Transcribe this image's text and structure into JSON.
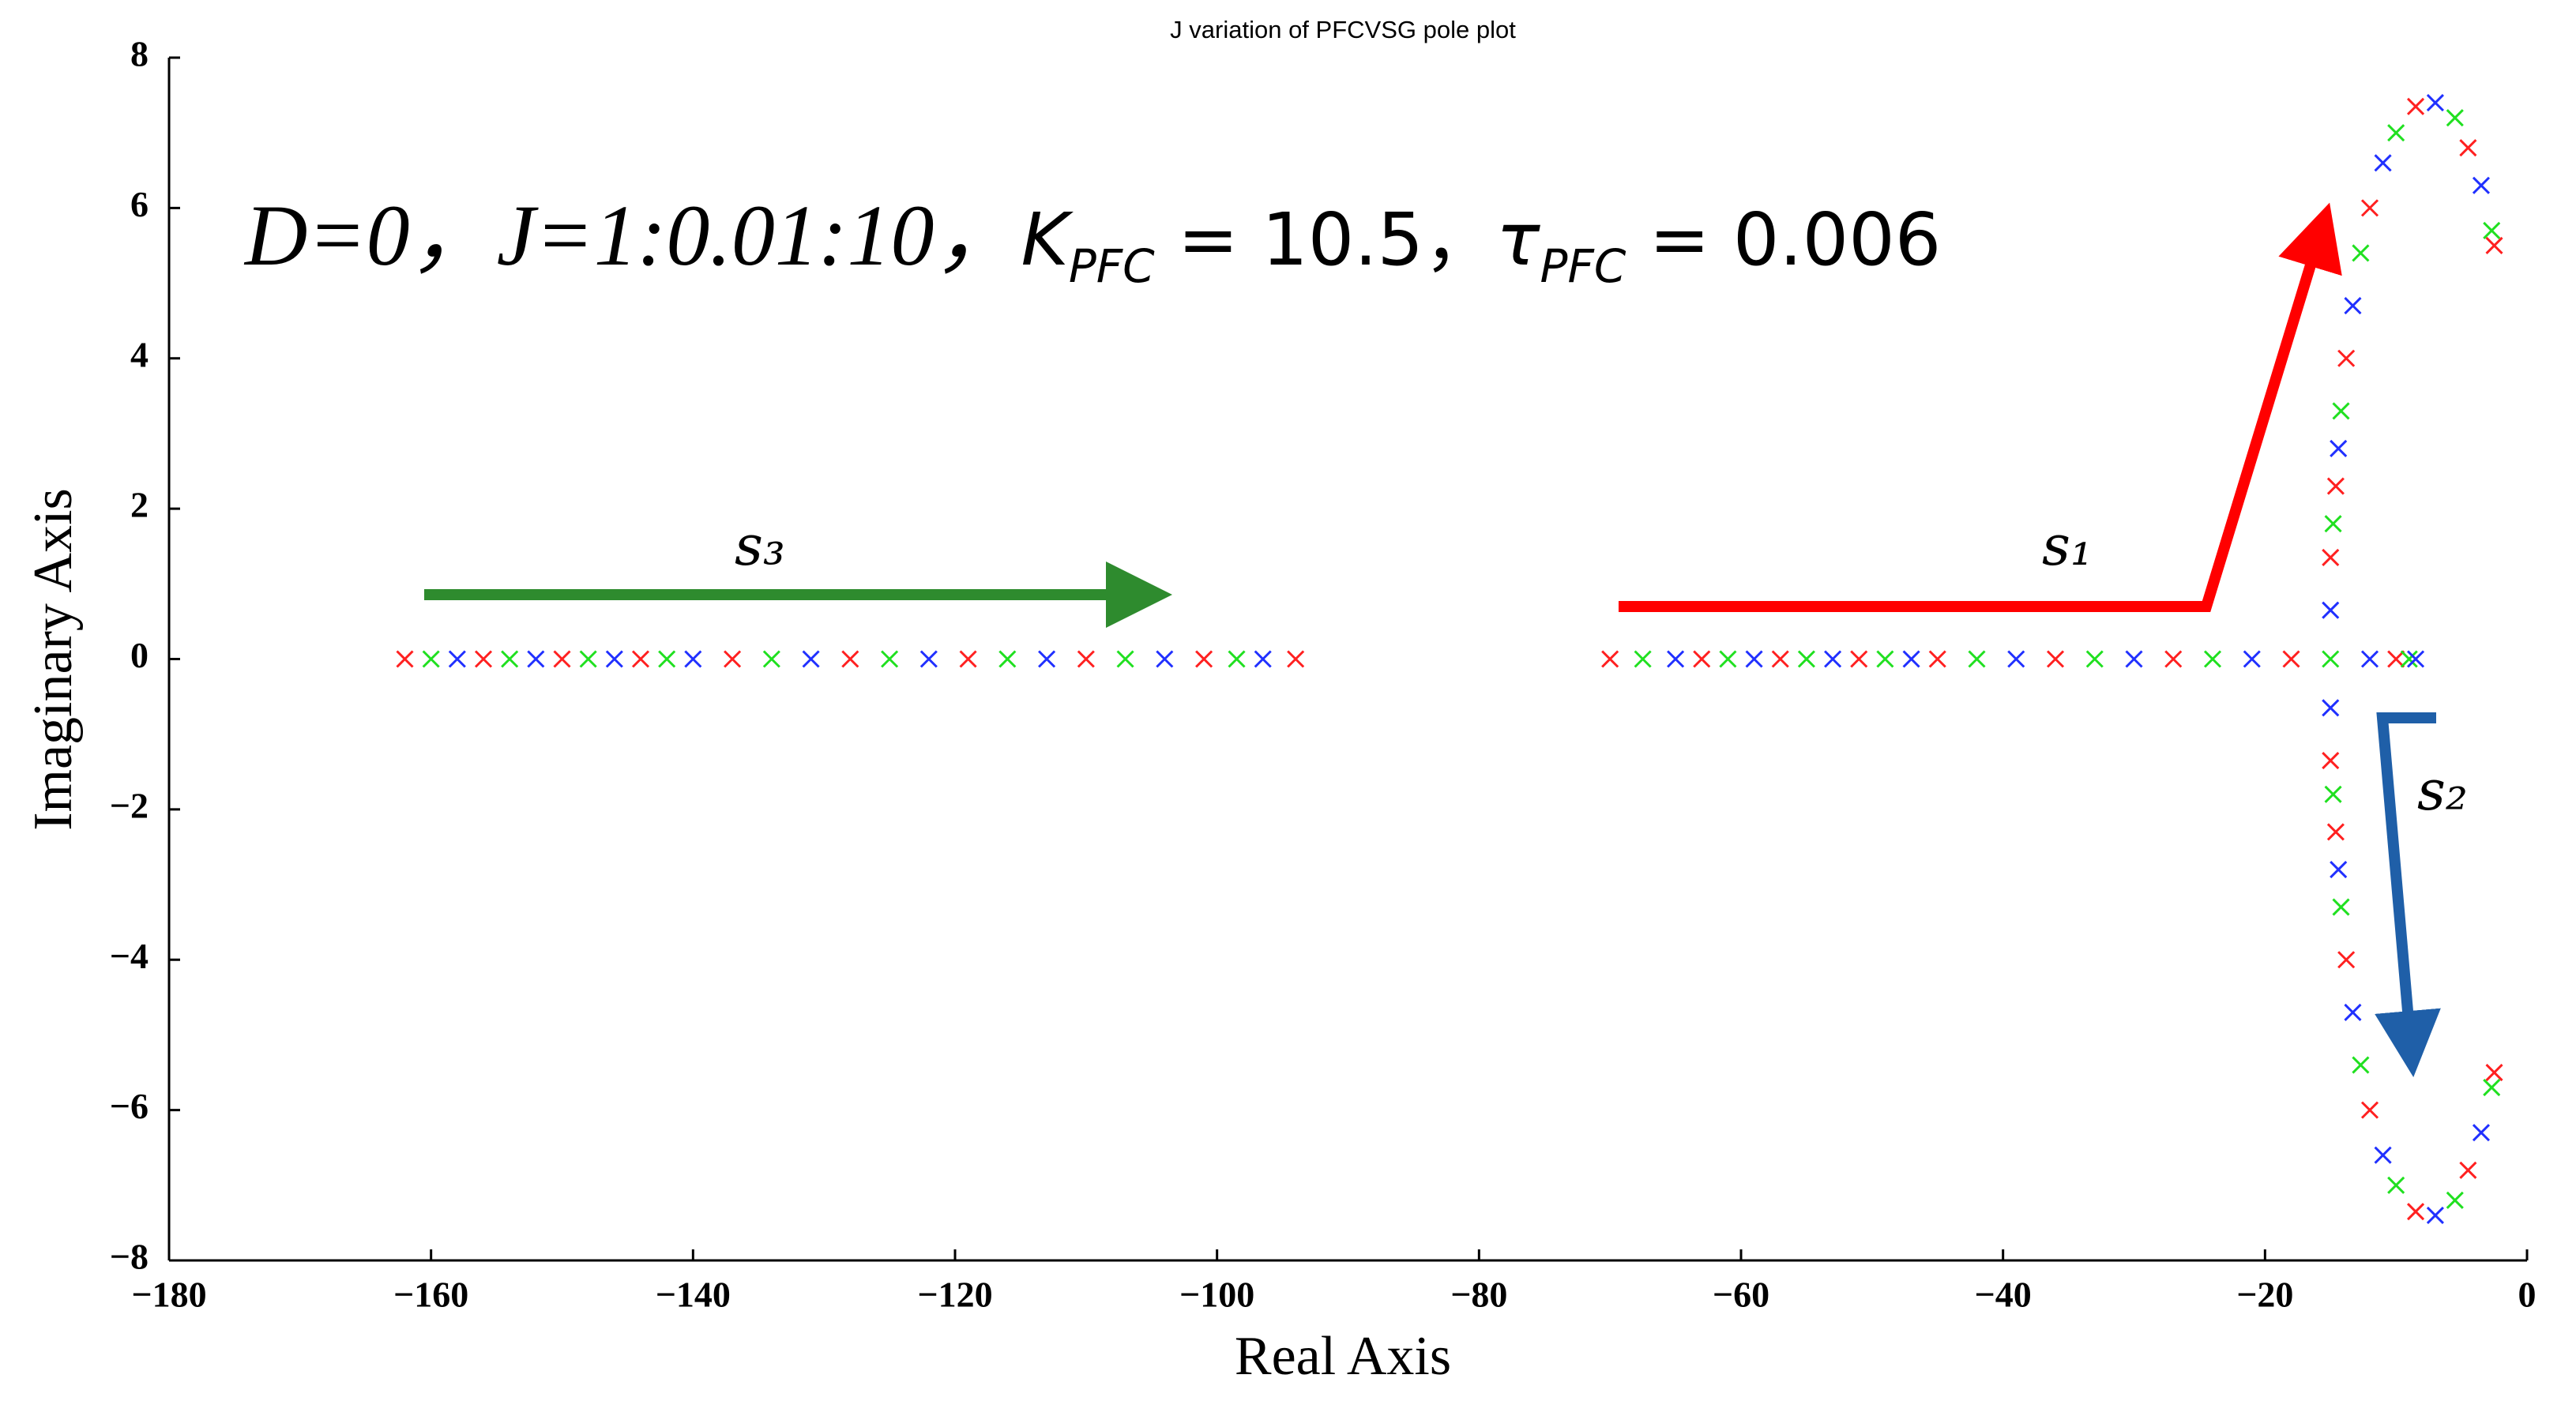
{
  "chart_data": {
    "type": "scatter",
    "title": "J variation of PFCVSG pole plot",
    "x_label": "Real Axis",
    "y_label": "Imaginary Axis",
    "xlim": [
      -180,
      0
    ],
    "xticks": [
      {
        "value": -180,
        "label": "−180"
      },
      {
        "value": -160,
        "label": "−160"
      },
      {
        "value": -140,
        "label": "−140"
      },
      {
        "value": -120,
        "label": "−120"
      },
      {
        "value": -100,
        "label": "−100"
      },
      {
        "value": -80,
        "label": "−80"
      },
      {
        "value": -60,
        "label": "−60"
      },
      {
        "value": -40,
        "label": "−40"
      },
      {
        "value": -20,
        "label": "−20"
      },
      0
    ],
    "ylim": [
      -8,
      8
    ],
    "yticks": [
      {
        "value": -8,
        "label": "−8"
      },
      {
        "value": -6,
        "label": "−6"
      },
      {
        "value": -4,
        "label": "−4"
      },
      {
        "value": -2,
        "label": "−2"
      },
      0,
      2,
      4,
      6,
      8
    ],
    "formula": [
      "D=0，J=1:0.01:10，",
      "K",
      "PFC",
      " = 10.5，",
      "τ",
      "PFC",
      " = 0.006"
    ],
    "branch_labels": [
      "s₃",
      "s₁",
      "s₂"
    ],
    "series": [
      {
        "color": "#ff2020",
        "x": [
          -162,
          -156,
          -150,
          -144,
          -137,
          -128,
          -119,
          -110,
          -101,
          -94,
          -70,
          -63,
          -57,
          -51,
          -45,
          -36,
          -27,
          -18,
          -10,
          -15,
          -14.6,
          -13.8,
          -12,
          -8.5,
          -4.5,
          -2.5,
          -15,
          -14.6,
          -13.8,
          -12,
          -8.5,
          -4.5,
          -2.5
        ],
        "values": [
          0,
          0,
          0,
          0,
          0,
          0,
          0,
          0,
          0,
          0,
          0,
          0,
          0,
          0,
          0,
          0,
          0,
          0,
          0,
          1.35,
          2.3,
          4,
          6,
          7.35,
          6.8,
          5.5,
          -1.35,
          -2.3,
          -4,
          -6,
          -7.35,
          -6.8,
          -5.5
        ]
      },
      {
        "color": "#20e020",
        "x": [
          -160,
          -154,
          -148,
          -142,
          -134,
          -125,
          -116,
          -107,
          -98.5,
          -67.5,
          -61,
          -55,
          -49,
          -42,
          -33,
          -24,
          -15,
          -9,
          -14.8,
          -14.2,
          -12.7,
          -10,
          -5.5,
          -2.7,
          -14.8,
          -14.2,
          -12.7,
          -10,
          -5.5,
          -2.7
        ],
        "values": [
          0,
          0,
          0,
          0,
          0,
          0,
          0,
          0,
          0,
          0,
          0,
          0,
          0,
          0,
          0,
          0,
          0,
          0,
          1.8,
          3.3,
          5.4,
          7,
          7.2,
          5.7,
          -1.8,
          -3.3,
          -5.4,
          -7,
          -7.2,
          -5.7
        ]
      },
      {
        "color": "#2030ff",
        "x": [
          -158,
          -152,
          -146,
          -140,
          -131,
          -122,
          -113,
          -104,
          -96.5,
          -65,
          -59,
          -53,
          -47,
          -39,
          -30,
          -21,
          -12,
          -8.5,
          -15,
          -14.4,
          -13.3,
          -11,
          -7,
          -3.5,
          -15,
          -14.4,
          -13.3,
          -11,
          -7,
          -3.5
        ],
        "values": [
          0,
          0,
          0,
          0,
          0,
          0,
          0,
          0,
          0,
          0,
          0,
          0,
          0,
          0,
          0,
          0,
          0,
          0,
          0.65,
          2.8,
          4.7,
          6.6,
          7.4,
          6.3,
          -0.65,
          -2.8,
          -4.7,
          -6.6,
          -7.4,
          -6.3
        ]
      }
    ]
  }
}
